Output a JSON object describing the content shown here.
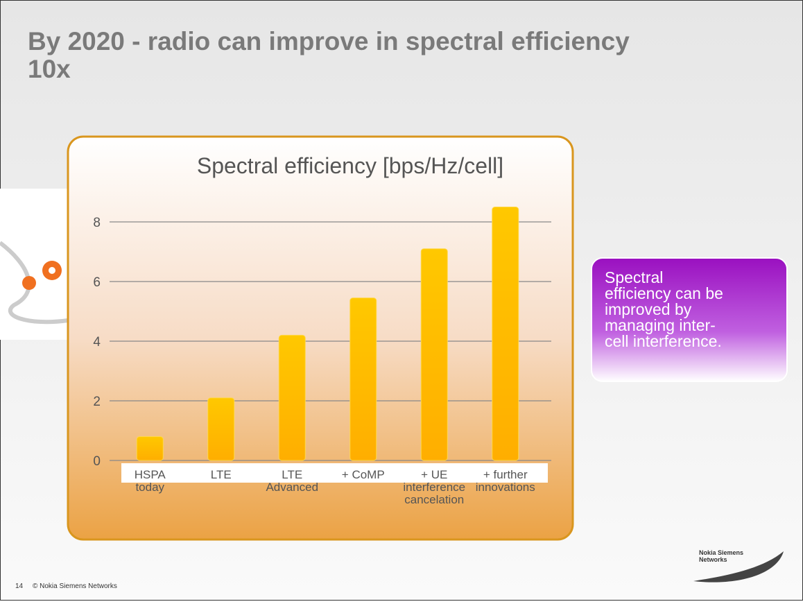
{
  "slide_title": "By 2020 - radio can improve in spectral efficiency\n10x",
  "callout": "Spectral\nefficiency can be\nimproved by\nmanaging inter-\ncell interference.",
  "footer": {
    "page": "14",
    "copyright": "© Nokia Siemens Networks"
  },
  "logo": "Nokia Siemens\nNetworks",
  "chart_data": {
    "type": "bar",
    "title": "Spectral efficiency [bps/Hz/cell]",
    "categories": [
      "HSPA\ntoday",
      "LTE",
      "LTE\nAdvanced",
      "+ CoMP",
      "+ UE\ninterference\ncancelation",
      "+ further\ninnovations"
    ],
    "values": [
      0.8,
      2.1,
      4.2,
      5.45,
      7.1,
      8.5
    ],
    "color": "#ffc800",
    "ylim": [
      0,
      9
    ],
    "yticks": [
      0,
      2,
      4,
      6,
      8
    ],
    "grid": true
  }
}
